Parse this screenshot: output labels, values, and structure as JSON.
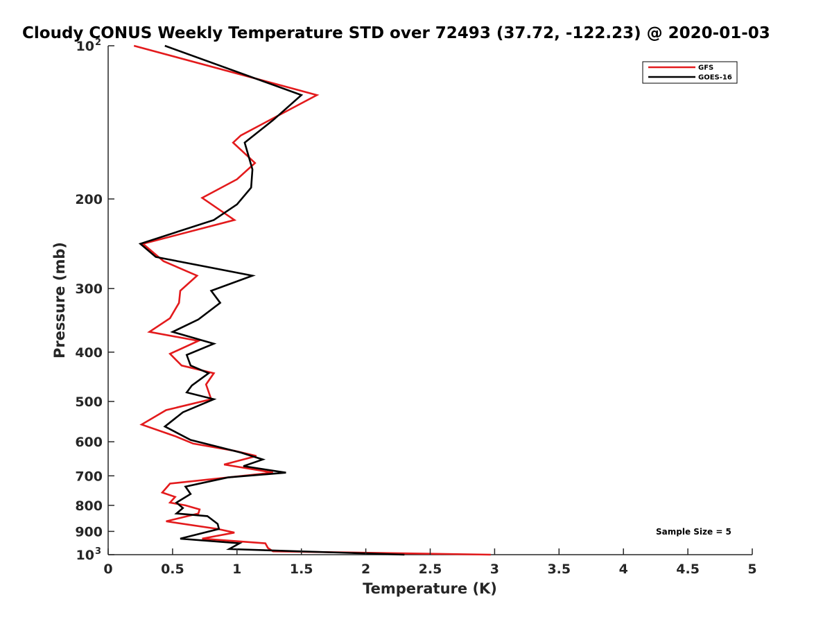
{
  "chart_data": {
    "type": "line",
    "title": "Cloudy CONUS Weekly Temperature STD over 72493 (37.72, -122.23) @ 2020-01-03",
    "xlabel": "Temperature (K)",
    "ylabel": "Pressure (mb)",
    "xlim": [
      0,
      5
    ],
    "ylim": [
      100,
      1000
    ],
    "yscale": "log",
    "y_reversed": true,
    "grid": false,
    "legend_position": "top-right",
    "xticks": [
      {
        "v": 0,
        "label": "0"
      },
      {
        "v": 0.5,
        "label": "0.5"
      },
      {
        "v": 1,
        "label": "1"
      },
      {
        "v": 1.5,
        "label": "1.5"
      },
      {
        "v": 2,
        "label": "2"
      },
      {
        "v": 2.5,
        "label": "2.5"
      },
      {
        "v": 3,
        "label": "3"
      },
      {
        "v": 3.5,
        "label": "3.5"
      },
      {
        "v": 4,
        "label": "4"
      },
      {
        "v": 4.5,
        "label": "4.5"
      },
      {
        "v": 5,
        "label": "5"
      }
    ],
    "yticks": [
      {
        "v": 100,
        "label": "10",
        "sup": "2"
      },
      {
        "v": 200,
        "label": "200"
      },
      {
        "v": 300,
        "label": "300"
      },
      {
        "v": 400,
        "label": "400"
      },
      {
        "v": 500,
        "label": "500"
      },
      {
        "v": 600,
        "label": "600"
      },
      {
        "v": 700,
        "label": "700"
      },
      {
        "v": 800,
        "label": "800"
      },
      {
        "v": 900,
        "label": "900"
      },
      {
        "v": 1000,
        "label": "10",
        "sup": "3"
      }
    ],
    "annotation": "Sample Size = 5",
    "series": [
      {
        "name": "GFS",
        "color": "#e31a1c",
        "points": [
          [
            0.2,
            100
          ],
          [
            1.62,
            125
          ],
          [
            1.03,
            150
          ],
          [
            0.97,
            155
          ],
          [
            1.14,
            170
          ],
          [
            1.0,
            183
          ],
          [
            0.73,
            199
          ],
          [
            0.98,
            220
          ],
          [
            0.27,
            245
          ],
          [
            0.43,
            265
          ],
          [
            0.69,
            283
          ],
          [
            0.56,
            303
          ],
          [
            0.55,
            320
          ],
          [
            0.48,
            343
          ],
          [
            0.32,
            365
          ],
          [
            0.7,
            380
          ],
          [
            0.48,
            403
          ],
          [
            0.57,
            425
          ],
          [
            0.82,
            440
          ],
          [
            0.76,
            463
          ],
          [
            0.8,
            495
          ],
          [
            0.45,
            520
          ],
          [
            0.26,
            555
          ],
          [
            0.52,
            585
          ],
          [
            0.66,
            605
          ],
          [
            0.98,
            625
          ],
          [
            1.15,
            640
          ],
          [
            0.9,
            665
          ],
          [
            1.28,
            690
          ],
          [
            0.48,
            725
          ],
          [
            0.42,
            755
          ],
          [
            0.52,
            770
          ],
          [
            0.48,
            790
          ],
          [
            0.6,
            800
          ],
          [
            0.71,
            815
          ],
          [
            0.7,
            830
          ],
          [
            0.45,
            860
          ],
          [
            0.85,
            890
          ],
          [
            0.98,
            905
          ],
          [
            0.73,
            930
          ],
          [
            1.22,
            950
          ],
          [
            1.24,
            970
          ],
          [
            1.28,
            985
          ],
          [
            2.97,
            1000
          ]
        ]
      },
      {
        "name": "GOES-16",
        "color": "#000000",
        "points": [
          [
            0.44,
            100
          ],
          [
            1.5,
            125
          ],
          [
            1.28,
            140
          ],
          [
            1.06,
            155
          ],
          [
            1.12,
            175
          ],
          [
            1.11,
            190
          ],
          [
            1.0,
            205
          ],
          [
            0.82,
            220
          ],
          [
            0.25,
            245
          ],
          [
            0.37,
            260
          ],
          [
            1.12,
            283
          ],
          [
            0.8,
            303
          ],
          [
            0.87,
            320
          ],
          [
            0.7,
            345
          ],
          [
            0.5,
            365
          ],
          [
            0.82,
            385
          ],
          [
            0.61,
            405
          ],
          [
            0.64,
            425
          ],
          [
            0.78,
            440
          ],
          [
            0.65,
            465
          ],
          [
            0.61,
            480
          ],
          [
            0.82,
            495
          ],
          [
            0.58,
            525
          ],
          [
            0.44,
            560
          ],
          [
            0.64,
            595
          ],
          [
            1.03,
            630
          ],
          [
            1.2,
            650
          ],
          [
            1.05,
            670
          ],
          [
            1.38,
            690
          ],
          [
            0.93,
            705
          ],
          [
            0.6,
            735
          ],
          [
            0.64,
            760
          ],
          [
            0.53,
            790
          ],
          [
            0.58,
            810
          ],
          [
            0.53,
            830
          ],
          [
            0.77,
            840
          ],
          [
            0.85,
            870
          ],
          [
            0.86,
            890
          ],
          [
            0.56,
            930
          ],
          [
            1.02,
            950
          ],
          [
            0.94,
            975
          ],
          [
            2.3,
            1000
          ]
        ]
      }
    ]
  }
}
